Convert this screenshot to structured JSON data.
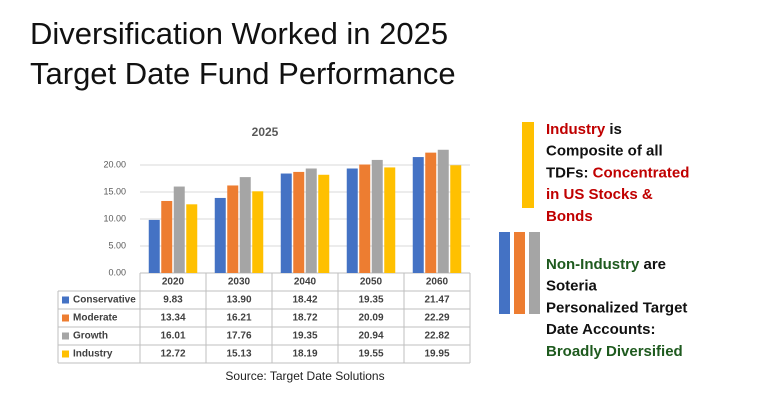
{
  "slide": {
    "title_lines": [
      "Diversification Worked in 2025",
      "Target Date Fund Performance"
    ],
    "source": "Source: Target Date Solutions",
    "industry_note": [
      [
        {
          "text": "Industry",
          "color": "#c00000"
        },
        {
          "text": " is",
          "color": "#111111"
        }
      ],
      [
        {
          "text": "Composite of all",
          "color": "#111111"
        }
      ],
      [
        {
          "text": "TDFs: ",
          "color": "#111111"
        },
        {
          "text": "Concentrated",
          "color": "#c00000"
        }
      ],
      [
        {
          "text": "in US Stocks &",
          "color": "#c00000"
        }
      ],
      [
        {
          "text": "Bonds",
          "color": "#c00000"
        }
      ]
    ],
    "non_industry_note": [
      [
        {
          "text": "Non-Industry",
          "color": "#1e5a1e"
        },
        {
          "text": " are",
          "color": "#111111"
        }
      ],
      [
        {
          "text": "Soteria",
          "color": "#111111"
        }
      ],
      [
        {
          "text": "Personalized Target",
          "color": "#111111"
        }
      ],
      [
        {
          "text": "Date Accounts:",
          "color": "#111111"
        }
      ],
      [
        {
          "text": "Broadly Diversified",
          "color": "#1e5a1e"
        }
      ]
    ]
  },
  "chart_data": {
    "type": "bar",
    "title": "2025",
    "categories": [
      "2020",
      "2030",
      "2040",
      "2050",
      "2060"
    ],
    "series": [
      {
        "name": "Conservative",
        "color": "#4472c4",
        "values": [
          9.83,
          13.9,
          18.42,
          19.35,
          21.47
        ],
        "value_labels": [
          "9.83",
          "13.90",
          "18.42",
          "19.35",
          "21.47"
        ]
      },
      {
        "name": "Moderate",
        "color": "#ed7d31",
        "values": [
          13.34,
          16.21,
          18.72,
          20.09,
          22.29
        ],
        "value_labels": [
          "13.34",
          "16.21",
          "18.72",
          "20.09",
          "22.29"
        ]
      },
      {
        "name": "Growth",
        "color": "#a5a5a5",
        "values": [
          16.01,
          17.76,
          19.35,
          20.94,
          22.82
        ],
        "value_labels": [
          "16.01",
          "17.76",
          "19.35",
          "20.94",
          "22.82"
        ]
      },
      {
        "name": "Industry",
        "color": "#ffc000",
        "values": [
          12.72,
          15.13,
          18.19,
          19.55,
          19.95
        ],
        "value_labels": [
          "12.72",
          "15.13",
          "18.19",
          "19.55",
          "19.95"
        ]
      }
    ],
    "ylim": [
      0,
      25
    ],
    "yticks": [
      {
        "value": 0,
        "label": "0.00"
      },
      {
        "value": 5,
        "label": "5.00"
      },
      {
        "value": 10,
        "label": "10.00"
      },
      {
        "value": 15,
        "label": "15.00"
      },
      {
        "value": 20,
        "label": "20.00"
      }
    ],
    "grid": true
  }
}
